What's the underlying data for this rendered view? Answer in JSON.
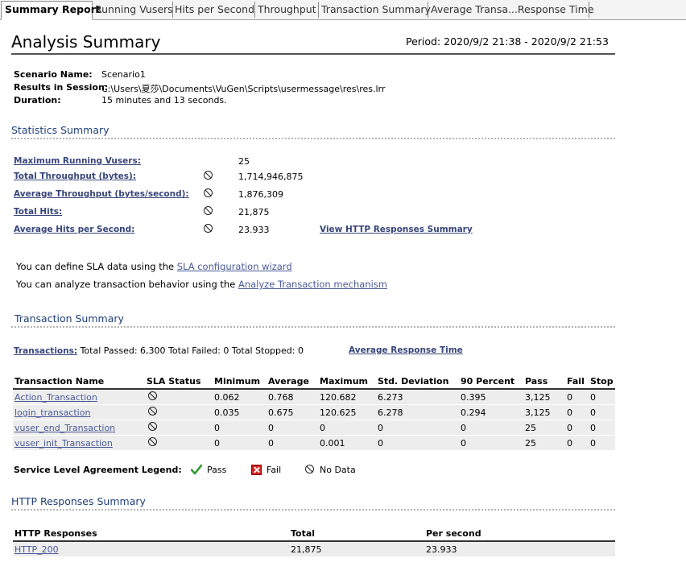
{
  "tabs": [
    {
      "label": "Summary Report",
      "active": true
    },
    {
      "label": "Running Vusers",
      "active": false
    },
    {
      "label": "Hits per Second",
      "active": false
    },
    {
      "label": "Throughput",
      "active": false
    },
    {
      "label": "Transaction Summary",
      "active": false
    },
    {
      "label": "Average Transa...Response Time",
      "active": false
    }
  ],
  "header": {
    "title": "Analysis Summary",
    "period": "Period: 2020/9/2 21:38 - 2020/9/2 21:53"
  },
  "scenario": {
    "name_label": "Scenario Name:",
    "name_value": "Scenario1",
    "results_label": "Results in Session:",
    "results_value": "C:\\Users\\夏莎\\Documents\\VuGen\\Scripts\\usermessage\\res\\res.lrr",
    "duration_label": "Duration:",
    "duration_value": "15 minutes and 13 seconds."
  },
  "statistics": {
    "heading": "Statistics Summary",
    "rows": [
      {
        "label": "Maximum Running Vusers:",
        "value": "25",
        "sla_icon": "none"
      },
      {
        "label": "Total Throughput (bytes):",
        "value": "1,714,946,875",
        "sla_icon": "no-data-icon"
      },
      {
        "label": "Average Throughput (bytes/second):",
        "value": "1,876,309",
        "sla_icon": "no-data-icon"
      },
      {
        "label": "Total Hits:",
        "value": "21,875",
        "sla_icon": "no-data-icon"
      },
      {
        "label": "Average Hits per Second:",
        "value": "23.933",
        "sla_icon": "no-data-icon"
      }
    ],
    "http_link": "View HTTP Responses Summary"
  },
  "sla_text": {
    "line1_prefix": "You can define SLA data using the ",
    "line1_link": "SLA configuration wizard",
    "line2_prefix": "You can analyze transaction behavior using the ",
    "line2_link": "Analyze Transaction mechanism"
  },
  "transactions": {
    "heading": "Transaction Summary",
    "link_label": "Transactions:",
    "totals": " Total Passed: 6,300 Total Failed: 0 Total Stopped: 0",
    "avg_link": "Average Response Time",
    "columns": [
      "Transaction Name",
      "SLA Status",
      "Minimum",
      "Average",
      "Maximum",
      "Std. Deviation",
      "90 Percent",
      "Pass",
      "Fail",
      "Stop"
    ],
    "rows": [
      {
        "name": "Action_Transaction",
        "min": "0.062",
        "avg": "0.768",
        "max": "120.682",
        "std": "6.273",
        "p90": "0.395",
        "pass": "3,125",
        "fail": "0",
        "stop": "0"
      },
      {
        "name": "login_transaction",
        "min": "0.035",
        "avg": "0.675",
        "max": "120.625",
        "std": "6.278",
        "p90": "0.294",
        "pass": "3,125",
        "fail": "0",
        "stop": "0"
      },
      {
        "name": "vuser_end_Transaction",
        "min": "0",
        "avg": "0",
        "max": "0",
        "std": "0",
        "p90": "0",
        "pass": "25",
        "fail": "0",
        "stop": "0"
      },
      {
        "name": "vuser_init_Transaction",
        "min": "0",
        "avg": "0",
        "max": "0.001",
        "std": "0",
        "p90": "0",
        "pass": "25",
        "fail": "0",
        "stop": "0"
      }
    ]
  },
  "legend": {
    "label": "Service Level Agreement Legend:",
    "pass": "Pass",
    "fail": "Fail",
    "no_data": "No Data"
  },
  "http": {
    "heading": "HTTP Responses Summary",
    "columns": [
      "HTTP Responses",
      "Total",
      "Per second"
    ],
    "rows": [
      {
        "name": "HTTP_200",
        "total": "21,875",
        "per_second": "23.933"
      }
    ]
  },
  "colors": {
    "link": "#1f3c80",
    "section_heading": "#1f3f7a",
    "row_alt": "#ededed",
    "fail_red": "#d42020",
    "pass_green": "#2e9d2e"
  }
}
